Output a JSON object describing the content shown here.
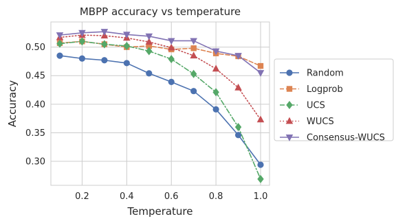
{
  "chart_data": {
    "type": "line",
    "title": "MBPP accuracy vs temperature",
    "xlabel": "Temperature",
    "ylabel": "Accuracy",
    "xlim": [
      0.06,
      1.04
    ],
    "ylim": [
      0.258,
      0.544
    ],
    "xticks": [
      0.2,
      0.4,
      0.6,
      0.8,
      1.0
    ],
    "xtick_labels": [
      "0.2",
      "0.4",
      "0.6",
      "0.8",
      "1.0"
    ],
    "yticks": [
      0.3,
      0.35,
      0.4,
      0.45,
      0.5
    ],
    "ytick_labels": [
      "0.30",
      "0.35",
      "0.40",
      "0.45",
      "0.50"
    ],
    "grid": true,
    "legend_position": "center-right, outside plot",
    "x": [
      0.1,
      0.2,
      0.3,
      0.4,
      0.5,
      0.6,
      0.7,
      0.8,
      0.9,
      1.0
    ],
    "series": [
      {
        "name": "Random",
        "color": "#4c72b0",
        "marker": "circle",
        "linestyle": "solid",
        "values": [
          0.485,
          0.48,
          0.477,
          0.472,
          0.454,
          0.439,
          0.423,
          0.391,
          0.346,
          0.294
        ]
      },
      {
        "name": "Logprob",
        "color": "#dd8452",
        "marker": "square",
        "linestyle": "dashed",
        "values": [
          0.507,
          0.51,
          0.505,
          0.5,
          0.502,
          0.496,
          0.498,
          0.489,
          0.484,
          0.467
        ]
      },
      {
        "name": "UCS",
        "color": "#55a868",
        "marker": "diamond",
        "linestyle": "dashdot",
        "values": [
          0.506,
          0.51,
          0.505,
          0.502,
          0.493,
          0.479,
          0.453,
          0.421,
          0.36,
          0.269
        ]
      },
      {
        "name": "WUCS",
        "color": "#c44e52",
        "marker": "triangle-up",
        "linestyle": "dotted",
        "values": [
          0.517,
          0.521,
          0.52,
          0.516,
          0.509,
          0.499,
          0.485,
          0.462,
          0.429,
          0.373
        ]
      },
      {
        "name": "Consensus-WUCS",
        "color": "#8172b3",
        "marker": "triangle-down",
        "linestyle": "solid",
        "values": [
          0.521,
          0.525,
          0.527,
          0.522,
          0.519,
          0.511,
          0.511,
          0.493,
          0.485,
          0.455
        ]
      }
    ]
  }
}
